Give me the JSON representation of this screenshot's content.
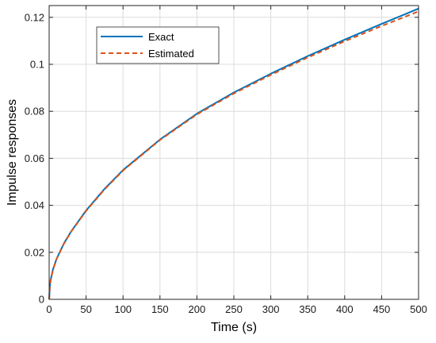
{
  "chart_data": {
    "type": "line",
    "title": "",
    "xlabel": "Time (s)",
    "ylabel": "Impulse responses",
    "xlim": [
      0,
      500
    ],
    "ylim": [
      0,
      0.125
    ],
    "xticks": [
      0,
      50,
      100,
      150,
      200,
      250,
      300,
      350,
      400,
      450,
      500
    ],
    "yticks": [
      0,
      0.02,
      0.04,
      0.06,
      0.08,
      0.1,
      0.12
    ],
    "xtick_labels": [
      "0",
      "50",
      "100",
      "150",
      "200",
      "250",
      "300",
      "350",
      "400",
      "450",
      "500"
    ],
    "ytick_labels": [
      "0",
      "0.02",
      "0.04",
      "0.06",
      "0.08",
      "0.1",
      "0.12"
    ],
    "grid": true,
    "legend_position": "top-left",
    "x": [
      0,
      1,
      2,
      5,
      10,
      20,
      30,
      50,
      75,
      100,
      150,
      200,
      250,
      300,
      350,
      400,
      450,
      500
    ],
    "series": [
      {
        "name": "Exact",
        "color": "#0072BD",
        "style": "solid",
        "values": [
          0,
          0.0058,
          0.0082,
          0.0125,
          0.0172,
          0.0238,
          0.029,
          0.0378,
          0.047,
          0.055,
          0.068,
          0.079,
          0.088,
          0.096,
          0.1035,
          0.1105,
          0.1172,
          0.1237
        ]
      },
      {
        "name": "Estimated",
        "color": "#D95319",
        "style": "dashed",
        "values": [
          0,
          0.0057,
          0.0081,
          0.0124,
          0.0171,
          0.0237,
          0.0289,
          0.0376,
          0.0468,
          0.0548,
          0.0678,
          0.0787,
          0.0876,
          0.0955,
          0.1029,
          0.1098,
          0.1163,
          0.1225
        ]
      }
    ]
  }
}
